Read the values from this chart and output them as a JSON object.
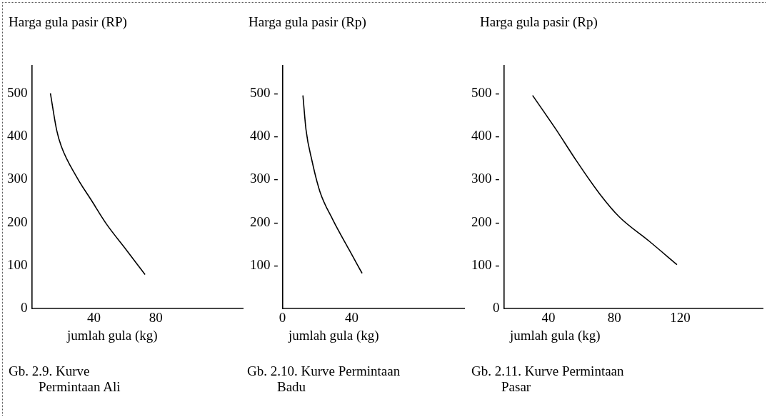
{
  "chart_data": [
    {
      "type": "line",
      "ylabel": "Harga gula pasir (RP)",
      "xlabel": "jumlah gula (kg)",
      "annotations": [
        "Gb. 2.9. Kurve Permintaan Ali"
      ],
      "series": [
        {
          "color": "#000000",
          "x": [
            12,
            16,
            19,
            29,
            38.5,
            48,
            61,
            73
          ],
          "values": [
            500,
            415,
            377,
            305,
            251,
            197,
            136,
            79
          ]
        }
      ],
      "xlim": [
        0,
        136
      ],
      "xticks": [
        40,
        80
      ],
      "ylim": [
        0,
        565
      ],
      "yticks": [
        0,
        100,
        200,
        300,
        400,
        500
      ],
      "grid": false,
      "legend": false,
      "marker": "none",
      "line_style": "solid"
    },
    {
      "type": "line",
      "ylabel": "Harga gula pasir (Rp)",
      "xlabel": "jumlah gula (kg)",
      "annotations": [
        "Gb. 2.10. Kurve Permintaan Badu"
      ],
      "series": [
        {
          "color": "#000000",
          "x": [
            11.8,
            13.6,
            17,
            21.6,
            29,
            38.6,
            46
          ],
          "values": [
            495,
            415,
            344,
            272,
            207,
            136,
            82
          ]
        }
      ],
      "xlim": [
        0,
        105
      ],
      "xticks": [
        0,
        40
      ],
      "ylim": [
        0,
        565
      ],
      "yticks": [
        {
          "value": 100,
          "label": "100 -"
        },
        {
          "value": 200,
          "label": "200 -"
        },
        {
          "value": 300,
          "label": "300 -"
        },
        {
          "value": 400,
          "label": "400 -"
        },
        {
          "value": 500,
          "label": "500 -"
        }
      ],
      "grid": false,
      "legend": false,
      "marker": "none",
      "line_style": "solid"
    },
    {
      "type": "line",
      "ylabel": "Harga gula pasir (Rp)",
      "xlabel": "jumlah gula (kg)",
      "annotations": [
        "Gb. 2.11. Kurve Permintaan Pasar"
      ],
      "series": [
        {
          "color": "#000000",
          "x": [
            30.4,
            44.8,
            56,
            71,
            83,
            101,
            118
          ],
          "values": [
            495,
            415,
            349,
            267,
            213,
            157,
            102
          ]
        }
      ],
      "xlim": [
        13,
        170
      ],
      "xticks": [
        40,
        80,
        120
      ],
      "ylim": [
        0,
        565
      ],
      "yticks": [
        0,
        {
          "value": 100,
          "label": "100 -"
        },
        {
          "value": 200,
          "label": "200 -"
        },
        {
          "value": 300,
          "label": "300 -"
        },
        {
          "value": 400,
          "label": "400 -"
        },
        {
          "value": 500,
          "label": "500 -"
        }
      ],
      "grid": false,
      "legend": false,
      "marker": "none",
      "line_style": "solid"
    }
  ]
}
